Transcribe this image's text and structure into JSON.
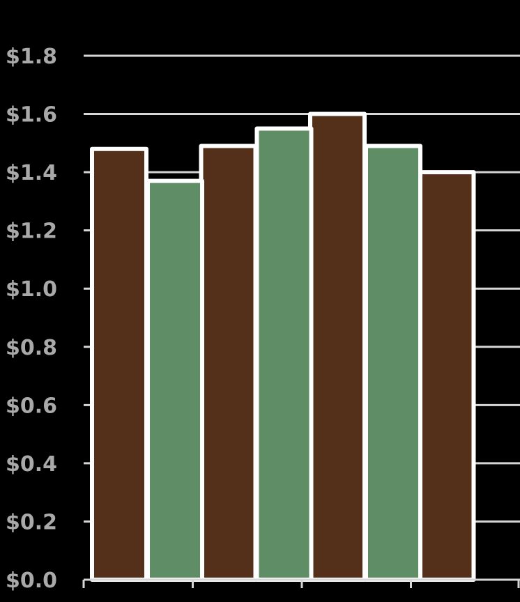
{
  "chart_data": {
    "type": "bar",
    "categories": [
      "",
      "",
      "",
      ""
    ],
    "series": [
      {
        "values": [
          1.48,
          1.49,
          1.6,
          1.4
        ],
        "color": "#54301a"
      },
      {
        "values": [
          1.37,
          1.55,
          1.49,
          null
        ],
        "color": "#5f8d66"
      }
    ],
    "ylim": [
      0,
      1.8
    ],
    "yticks": [
      0.0,
      0.2,
      0.4,
      0.6,
      0.8,
      1.0,
      1.2,
      1.4,
      1.6,
      1.8
    ],
    "ytick_labels": [
      "$0.0",
      "$0.2",
      "$0.4",
      "$0.6",
      "$0.8",
      "$1.0",
      "$1.2",
      "$1.4",
      "$1.6",
      "$1.8"
    ],
    "grid": true,
    "legend": "none",
    "colors": {
      "background": "#000000",
      "grid": "#d6d6d6",
      "tick_text": "#aaa9a9",
      "bar_outline": "#ffffff"
    }
  }
}
